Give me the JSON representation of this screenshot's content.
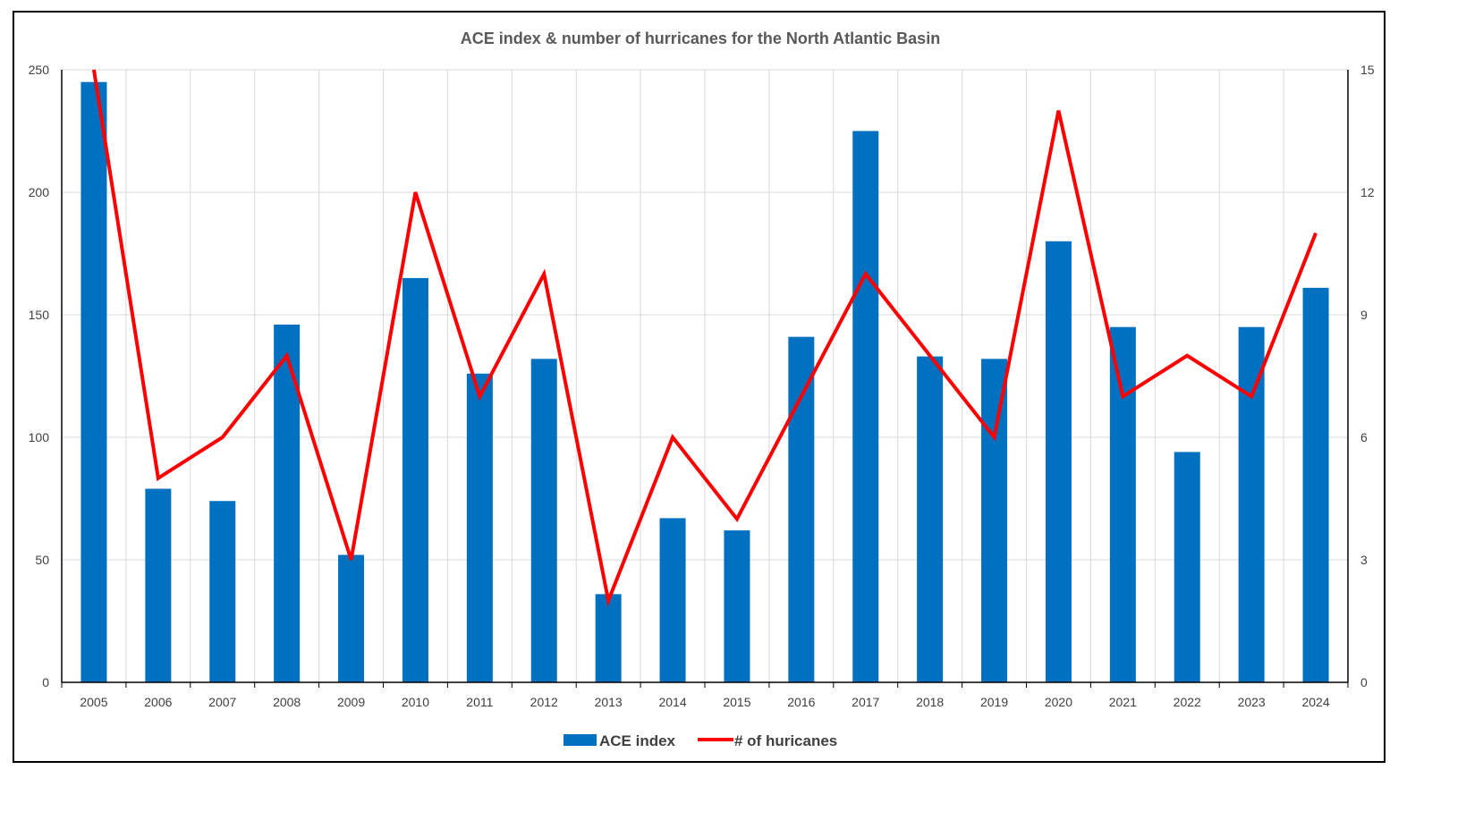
{
  "chart_data": {
    "type": "bar",
    "title": "ACE index & number of hurricanes for the North Atlantic Basin",
    "categories": [
      "2005",
      "2006",
      "2007",
      "2008",
      "2009",
      "2010",
      "2011",
      "2012",
      "2013",
      "2014",
      "2015",
      "2016",
      "2017",
      "2018",
      "2019",
      "2020",
      "2021",
      "2022",
      "2023",
      "2024"
    ],
    "series": [
      {
        "name": "ACE index",
        "type": "bar",
        "axis": "left",
        "color": "#0070C0",
        "values": [
          245,
          79,
          74,
          146,
          52,
          165,
          126,
          132,
          36,
          67,
          62,
          141,
          225,
          133,
          132,
          180,
          145,
          94,
          145,
          161
        ]
      },
      {
        "name": "# of huricanes",
        "type": "line",
        "axis": "right",
        "color": "#FF0000",
        "values": [
          15,
          5,
          6,
          8,
          3,
          12,
          7,
          10,
          2,
          6,
          4,
          7,
          10,
          8,
          6,
          14,
          7,
          8,
          7,
          11
        ]
      }
    ],
    "y_left": {
      "min": 0,
      "max": 250,
      "ticks": [
        "0",
        "50",
        "100",
        "150",
        "200",
        "250"
      ]
    },
    "y_right": {
      "min": 0,
      "max": 15,
      "ticks": [
        "0",
        "3",
        "6",
        "9",
        "12",
        "15"
      ]
    },
    "grid": true,
    "legend_position": "bottom"
  }
}
